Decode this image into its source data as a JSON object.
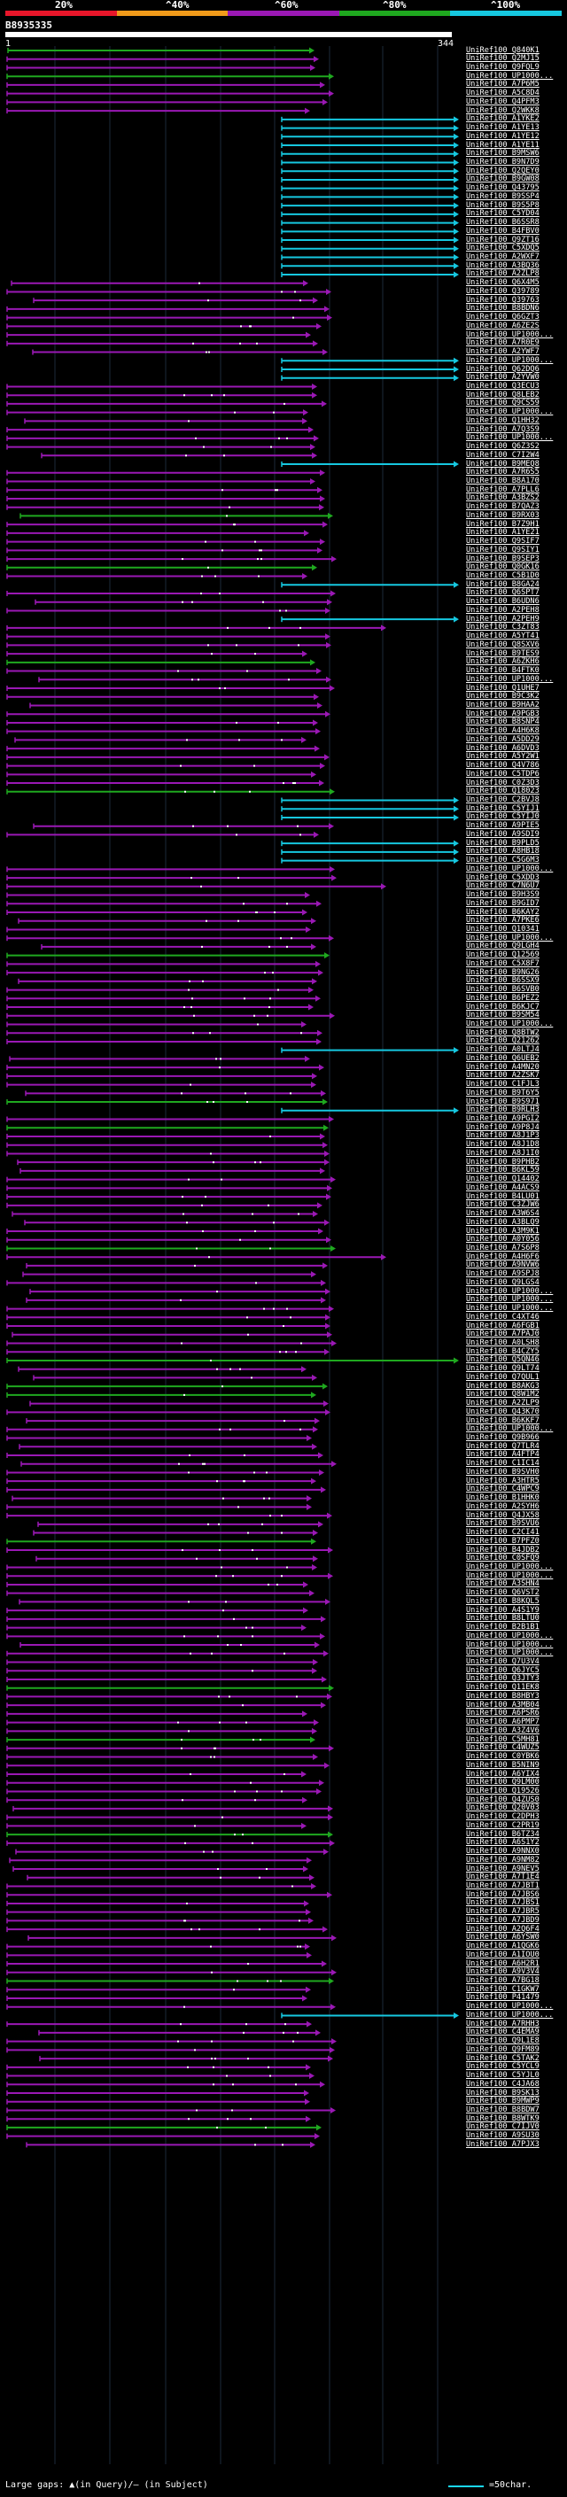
{
  "scale": {
    "labels": [
      "20%",
      "^40%",
      "^60%",
      "^80%",
      "^100%"
    ],
    "colors": [
      "#e8162a",
      "#f09a1a",
      "#9a18b4",
      "#1fa81f",
      "#16c8e0"
    ]
  },
  "query": {
    "id": "B8935335",
    "start": "1",
    "end": "344"
  },
  "hits": [
    "UniRef100_Q840K1",
    "UniRef100_Q2MJ15",
    "UniRef100_Q9FQL9",
    "UniRef100_UP1000...",
    "UniRef100_A7P6M5",
    "UniRef100_A5C8D4",
    "UniRef100_Q4PFM3",
    "UniRef100_Q2WKK8",
    "UniRef100_A1YKE2",
    "UniRef100_A1YE13",
    "UniRef100_A1YE12",
    "UniRef100_A1YE11",
    "UniRef100_B9MSW6",
    "UniRef100_B9N7D9",
    "UniRef100_Q2QEY0",
    "UniRef100_B9GW08",
    "UniRef100_Q43795",
    "UniRef100_B9SSP4",
    "UniRef100_B9S5P8",
    "UniRef100_C5YD04",
    "UniRef100_B6SSR8",
    "UniRef100_B4FBV0",
    "UniRef100_Q9ZT16",
    "UniRef100_C5XDQ5",
    "UniRef100_A2WXF7",
    "UniRef100_A3BQ36",
    "UniRef100_A2ZLP8",
    "UniRef100_Q6X4M5",
    "UniRef100_Q39789",
    "UniRef100_Q39763",
    "UniRef100_B8BDN6",
    "UniRef100_Q6GZT3",
    "UniRef100_A6ZE2S",
    "UniRef100_UP1000...",
    "UniRef100_A7R0E9",
    "UniRef100_A2YWF7",
    "UniRef100_UP1000...",
    "UniRef100_Q62DQ6",
    "UniRef100_A2YVW0",
    "UniRef100_Q3ECU3",
    "UniRef100_Q8LEB2",
    "UniRef100_Q9CS59",
    "UniRef100_UP1000...",
    "UniRef100_Q1HH32",
    "UniRef100_A7Q3S9",
    "UniRef100_UP1000...",
    "UniRef100_Q6Z3S2",
    "UniRef100_C7I2W4",
    "UniRef100_B9MEQ8",
    "UniRef100_A7R6S5",
    "UniRef100_B8A170",
    "UniRef100_A7PLL6",
    "UniRef100_A3BZS2",
    "UniRef100_B7QAZ3",
    "UniRef100_B9RX03",
    "UniRef100_B7Z9H1",
    "UniRef100_A1YE21",
    "UniRef100_Q9SIF7",
    "UniRef100_Q9SIY1",
    "UniRef100_B9SEP3",
    "UniRef100_Q0GK16",
    "UniRef100_C5B1D0",
    "UniRef100_B8GA24",
    "UniRef100_Q6SPT7",
    "UniRef100_B6UDN6",
    "UniRef100_A2PEH8",
    "UniRef100_A2PEH9",
    "UniRef100_C3ZT83",
    "UniRef100_A5YT41",
    "UniRef100_Q8SXV6",
    "UniRef100_B9TES9",
    "UniRef100_A6ZKH6",
    "UniRef100_B4FTK0",
    "UniRef100_UP1000...",
    "UniRef100_Q1UHE7",
    "UniRef100_B9C3K2",
    "UniRef100_B9HAA2",
    "UniRef100_A9PGB3",
    "UniRef100_B8SNP4",
    "UniRef100_A4H6K8",
    "UniRef100_A5DD29",
    "UniRef100_A6DVD3",
    "UniRef100_A5Y2W1",
    "UniRef100_Q4V786",
    "UniRef100_C5TDP6",
    "UniRef100_C0Z3D3",
    "UniRef100_Q18023",
    "UniRef100_C2BVJ8",
    "UniRef100_C5YIJ1",
    "UniRef100_C5YIJ0",
    "UniRef100_A9PIE5",
    "UniRef100_A9SDI9",
    "UniRef100_B9PLD5",
    "UniRef100_A8HB18",
    "UniRef100_C5G6M3",
    "UniRef100_UP1000...",
    "UniRef100_C5XDD3",
    "UniRef100_C7N6U7",
    "UniRef100_B9H3S9",
    "UniRef100_B9GID7",
    "UniRef100_B6KAY2",
    "UniRef100_A7PKE6",
    "UniRef100_Q10341",
    "UniRef100_UP1000...",
    "UniRef100_Q9LGH4",
    "UniRef100_Q12569",
    "UniRef100_C5X8F7",
    "UniRef100_B9NG26",
    "UniRef100_B6SSX9",
    "UniRef100_B6SVB0",
    "UniRef100_B6PEZ2",
    "UniRef100_B6KJC7",
    "UniRef100_B9SM54",
    "UniRef100_UP1000...",
    "UniRef100_Q8BTW2",
    "UniRef100_Q21262",
    "UniRef100_A0LTJ4",
    "UniRef100_Q6UEB2",
    "UniRef100_A4MN20",
    "UniRef100_A2ZSK7",
    "UniRef100_C1FJL3",
    "UniRef100_B9T6Y5",
    "UniRef100_B9S971",
    "UniRef100_B9RLH3",
    "UniRef100_A9PGI2",
    "UniRef100_A9P8J4",
    "UniRef100_A8J1P3",
    "UniRef100_A8J1D8",
    "UniRef100_A8J1I0",
    "UniRef100_B9PHB2",
    "UniRef100_B6KL59",
    "UniRef100_Q14402",
    "UniRef100_A4ACS9",
    "UniRef100_B4LU01",
    "UniRef100_C3ZJW6",
    "UniRef100_A3W6S4",
    "UniRef100_A3BLQ9",
    "UniRef100_A3M9K1",
    "UniRef100_A0Y056",
    "UniRef100_A7S6P8",
    "UniRef100_A4H6F6",
    "UniRef100_A9NVW6",
    "UniRef100_A9SPJ8",
    "UniRef100_Q9LGS4",
    "UniRef100_UP1000...",
    "UniRef100_UP1000...",
    "UniRef100_UP1000...",
    "UniRef100_C4XT46",
    "UniRef100_A6FGB1",
    "UniRef100_A7PAJ0",
    "UniRef100_A0LSH8",
    "UniRef100_B4CZY5",
    "UniRef100_Q5QN46",
    "UniRef100_Q9LT74",
    "UniRef100_Q7QUL1",
    "UniRef100_B8AKG3",
    "UniRef100_Q8W1M2",
    "UniRef100_A2ZLP9",
    "UniRef100_Q43K70",
    "UniRef100_B6KKF7",
    "UniRef100_UP1000...",
    "UniRef100_Q9B966",
    "UniRef100_Q7TLR4",
    "UniRef100_A4FTP4",
    "UniRef100_C1IC14",
    "UniRef100_B9SVH0",
    "UniRef100_A3HTR5",
    "UniRef100_C4WPC9",
    "UniRef100_B1HHK0",
    "UniRef100_A2SYH6",
    "UniRef100_Q4JX58",
    "UniRef100_B9SVU6",
    "UniRef100_C2CI41",
    "UniRef100_B7PFZ0",
    "UniRef100_B4JDB2",
    "UniRef100_C0SFQ9",
    "UniRef100_UP1000...",
    "UniRef100_UP1000...",
    "UniRef100_A3SHN4",
    "UniRef100_Q6VST2",
    "UniRef100_B8KQL5",
    "UniRef100_A4S1Y9",
    "UniRef100_B8LTU0",
    "UniRef100_B2B1B1",
    "UniRef100_UP1000...",
    "UniRef100_UP1000...",
    "UniRef100_UP1000...",
    "UniRef100_Q7U3V4",
    "UniRef100_Q6JYC5",
    "UniRef100_Q3JTY3",
    "UniRef100_Q11EK8",
    "UniRef100_B8HBY3",
    "UniRef100_A3MB04",
    "UniRef100_A6PSR6",
    "UniRef100_A6PMP7",
    "UniRef100_A3Z4V6",
    "UniRef100_C5MH81",
    "UniRef100_C4WUZ5",
    "UniRef100_C0YBK6",
    "UniRef100_B5NIN9",
    "UniRef100_A6YIX4",
    "UniRef100_Q9LM00",
    "UniRef100_Q19526",
    "UniRef100_Q4ZUS0",
    "UniRef100_Q20V03",
    "UniRef100_C2DPH3",
    "UniRef100_C2PR19",
    "UniRef100_B6TZ34",
    "UniRef100_A6S1Y2",
    "UniRef100_A9NNX0",
    "UniRef100_A9NM82",
    "UniRef100_A9NEV5",
    "UniRef100_A7T1E4",
    "UniRef100_A7JBT1",
    "UniRef100_A7JBS6",
    "UniRef100_A7JBS1",
    "UniRef100_A7JBR5",
    "UniRef100_A7JBD9",
    "UniRef100_A2Q6F4",
    "UniRef100_A6YSW0",
    "UniRef100_A1QGK6",
    "UniRef100_A1IOU0",
    "UniRef100_A6H2R1",
    "UniRef100_A9V3V4",
    "UniRef100_A7BG18",
    "UniRef100_C1GKW7",
    "UniRef100_P41479",
    "UniRef100_UP1000...",
    "UniRef100_UP1000...",
    "UniRef100_A7RHH3",
    "UniRef100_C4EMA9",
    "UniRef100_Q9L1E8",
    "UniRef100_Q9FM89",
    "UniRef100_C5TAK2",
    "UniRef100_C5YCL9",
    "UniRef100_C5YJL0",
    "UniRef100_C4JA68",
    "UniRef100_B9SK13",
    "UniRef100_B9MWP9",
    "UniRef100_B8BDW7",
    "UniRef100_B8WTK9",
    "UniRef100_C7IJV0",
    "UniRef100_A9SU30",
    "UniRef100_A7PJX3"
  ],
  "legend": {
    "text": "Large gaps: ▲(in Query)/— (in Subject)",
    "scale_label": "=50char."
  }
}
